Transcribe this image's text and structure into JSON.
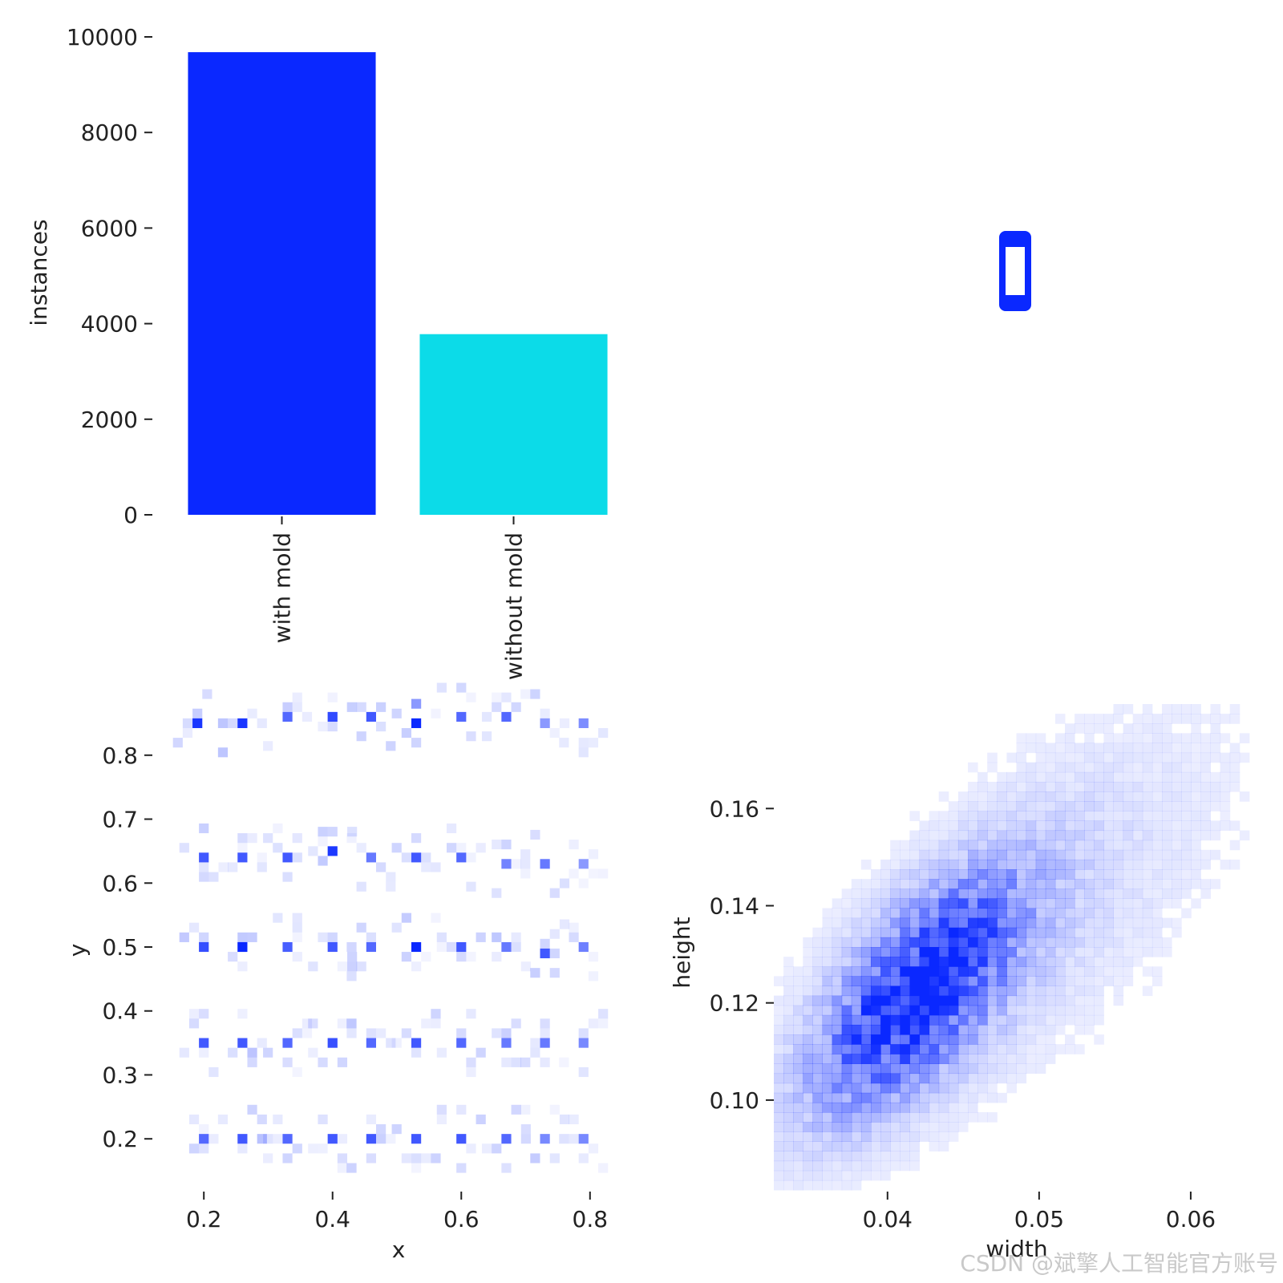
{
  "chart_data": [
    {
      "type": "bar",
      "categories": [
        "with mold",
        "without mold"
      ],
      "values": [
        9680,
        3780
      ],
      "colors": [
        "#0a28ff",
        "#0cdbe8"
      ],
      "ylabel": "instances",
      "yticks": [
        "0",
        "2000",
        "4000",
        "6000",
        "8000",
        "10000"
      ],
      "ylim": [
        0,
        10000
      ]
    },
    {
      "type": "boxes",
      "description_source": "overlapping bounding boxes of labels",
      "box_color": "#0a28ff",
      "box_width": 0.03,
      "box_height": 0.08
    },
    {
      "type": "heatmap",
      "xlabel": "x",
      "ylabel": "y",
      "xticks": [
        "0.2",
        "0.4",
        "0.6",
        "0.8"
      ],
      "yticks": [
        "0.2",
        "0.3",
        "0.4",
        "0.5",
        "0.6",
        "0.7",
        "0.8"
      ],
      "xlim": [
        0.12,
        0.88
      ],
      "ylim": [
        0.12,
        0.88
      ],
      "color": "#0a28ff",
      "hotspots": [
        [
          0.19,
          0.85,
          0.9
        ],
        [
          0.26,
          0.85,
          0.9
        ],
        [
          0.33,
          0.86,
          0.6
        ],
        [
          0.4,
          0.86,
          0.7
        ],
        [
          0.46,
          0.86,
          0.7
        ],
        [
          0.53,
          0.85,
          1.0
        ],
        [
          0.6,
          0.86,
          0.6
        ],
        [
          0.67,
          0.86,
          0.6
        ],
        [
          0.73,
          0.85,
          0.3
        ],
        [
          0.79,
          0.85,
          0.3
        ],
        [
          0.2,
          0.64,
          0.7
        ],
        [
          0.26,
          0.64,
          0.7
        ],
        [
          0.33,
          0.64,
          0.7
        ],
        [
          0.4,
          0.65,
          0.9
        ],
        [
          0.46,
          0.64,
          0.5
        ],
        [
          0.53,
          0.64,
          0.7
        ],
        [
          0.6,
          0.64,
          0.6
        ],
        [
          0.67,
          0.63,
          0.4
        ],
        [
          0.73,
          0.63,
          0.5
        ],
        [
          0.79,
          0.63,
          0.3
        ],
        [
          0.2,
          0.5,
          0.7
        ],
        [
          0.26,
          0.5,
          1.0
        ],
        [
          0.33,
          0.5,
          0.6
        ],
        [
          0.4,
          0.5,
          0.7
        ],
        [
          0.46,
          0.5,
          0.6
        ],
        [
          0.53,
          0.5,
          1.0
        ],
        [
          0.6,
          0.5,
          0.7
        ],
        [
          0.67,
          0.5,
          0.5
        ],
        [
          0.73,
          0.49,
          0.7
        ],
        [
          0.79,
          0.5,
          0.4
        ],
        [
          0.2,
          0.35,
          0.7
        ],
        [
          0.26,
          0.35,
          0.7
        ],
        [
          0.33,
          0.35,
          0.6
        ],
        [
          0.4,
          0.35,
          0.7
        ],
        [
          0.46,
          0.35,
          0.6
        ],
        [
          0.53,
          0.35,
          0.7
        ],
        [
          0.6,
          0.35,
          0.6
        ],
        [
          0.67,
          0.35,
          0.5
        ],
        [
          0.73,
          0.35,
          0.5
        ],
        [
          0.79,
          0.35,
          0.4
        ],
        [
          0.2,
          0.2,
          0.6
        ],
        [
          0.26,
          0.2,
          0.7
        ],
        [
          0.33,
          0.2,
          0.6
        ],
        [
          0.4,
          0.2,
          0.7
        ],
        [
          0.46,
          0.2,
          0.7
        ],
        [
          0.53,
          0.2,
          0.7
        ],
        [
          0.6,
          0.2,
          0.7
        ],
        [
          0.67,
          0.2,
          0.6
        ],
        [
          0.73,
          0.2,
          0.4
        ],
        [
          0.79,
          0.2,
          0.4
        ]
      ]
    },
    {
      "type": "heatmap",
      "xlabel": "width",
      "ylabel": "height",
      "xticks": [
        "0.04",
        "0.05",
        "0.06"
      ],
      "yticks": [
        "0.10",
        "0.12",
        "0.14",
        "0.16"
      ],
      "xlim": [
        0.0325,
        0.0645
      ],
      "ylim": [
        0.0815,
        0.1815
      ],
      "color": "#0a28ff",
      "density_peak": {
        "width": 0.042,
        "height": 0.122
      },
      "trend": "positive correlation between width and height"
    }
  ],
  "watermark": "CSDN @斌擎人工智能官方账号"
}
